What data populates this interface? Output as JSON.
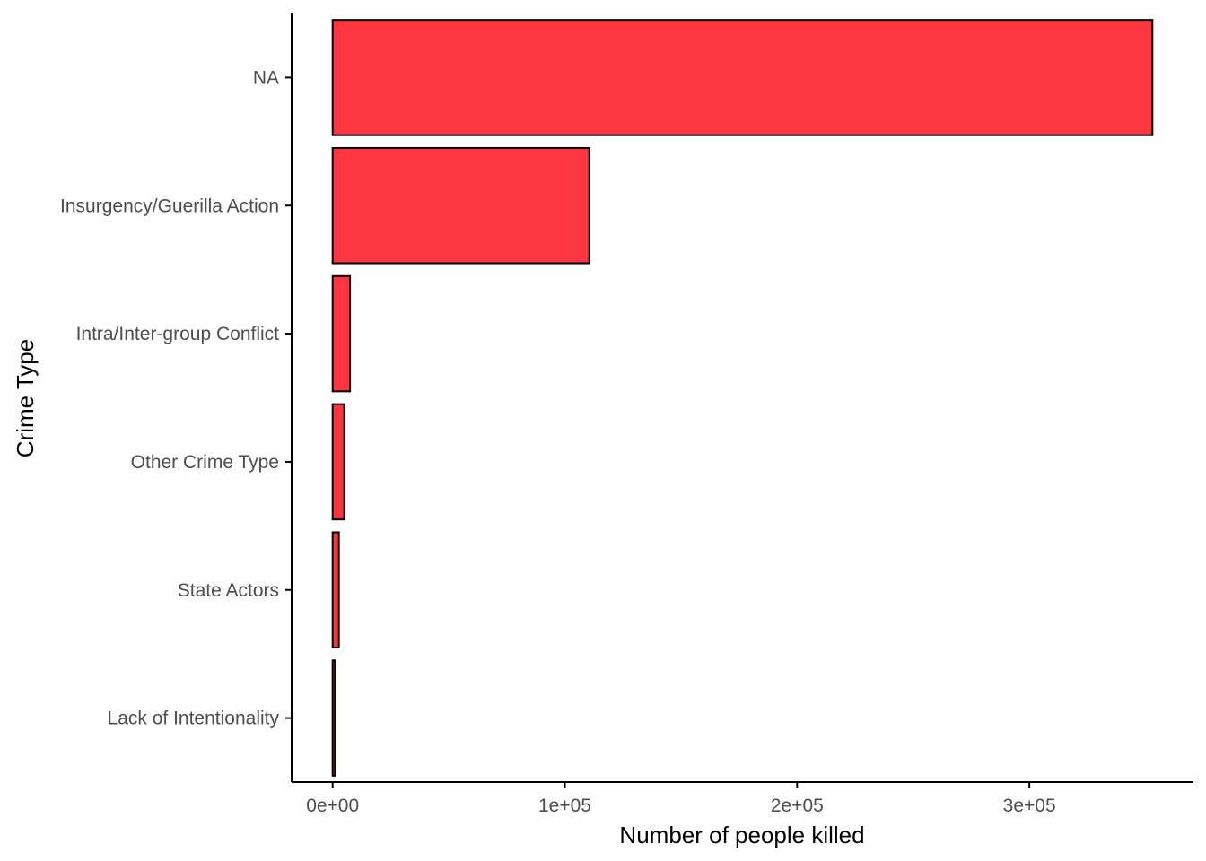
{
  "chart_data": {
    "type": "bar",
    "orientation": "horizontal",
    "categories": [
      "NA",
      "Insurgency/Guerilla Action",
      "Intra/Inter-group Conflict",
      "Other Crime Type",
      "State Actors",
      "Lack of Intentionality"
    ],
    "values": [
      353000,
      110500,
      7500,
      5000,
      2700,
      1000
    ],
    "xlabel": "Number of people killed",
    "ylabel": "Crime Type",
    "x_ticks": [
      0,
      100000,
      200000,
      300000
    ],
    "x_tick_labels": [
      "0e+00",
      "1e+05",
      "2e+05",
      "3e+05"
    ],
    "xlim": [
      -17650,
      370650
    ],
    "grid": false,
    "bar_color": "#fc3641",
    "bar_outline_color": "#000000"
  }
}
